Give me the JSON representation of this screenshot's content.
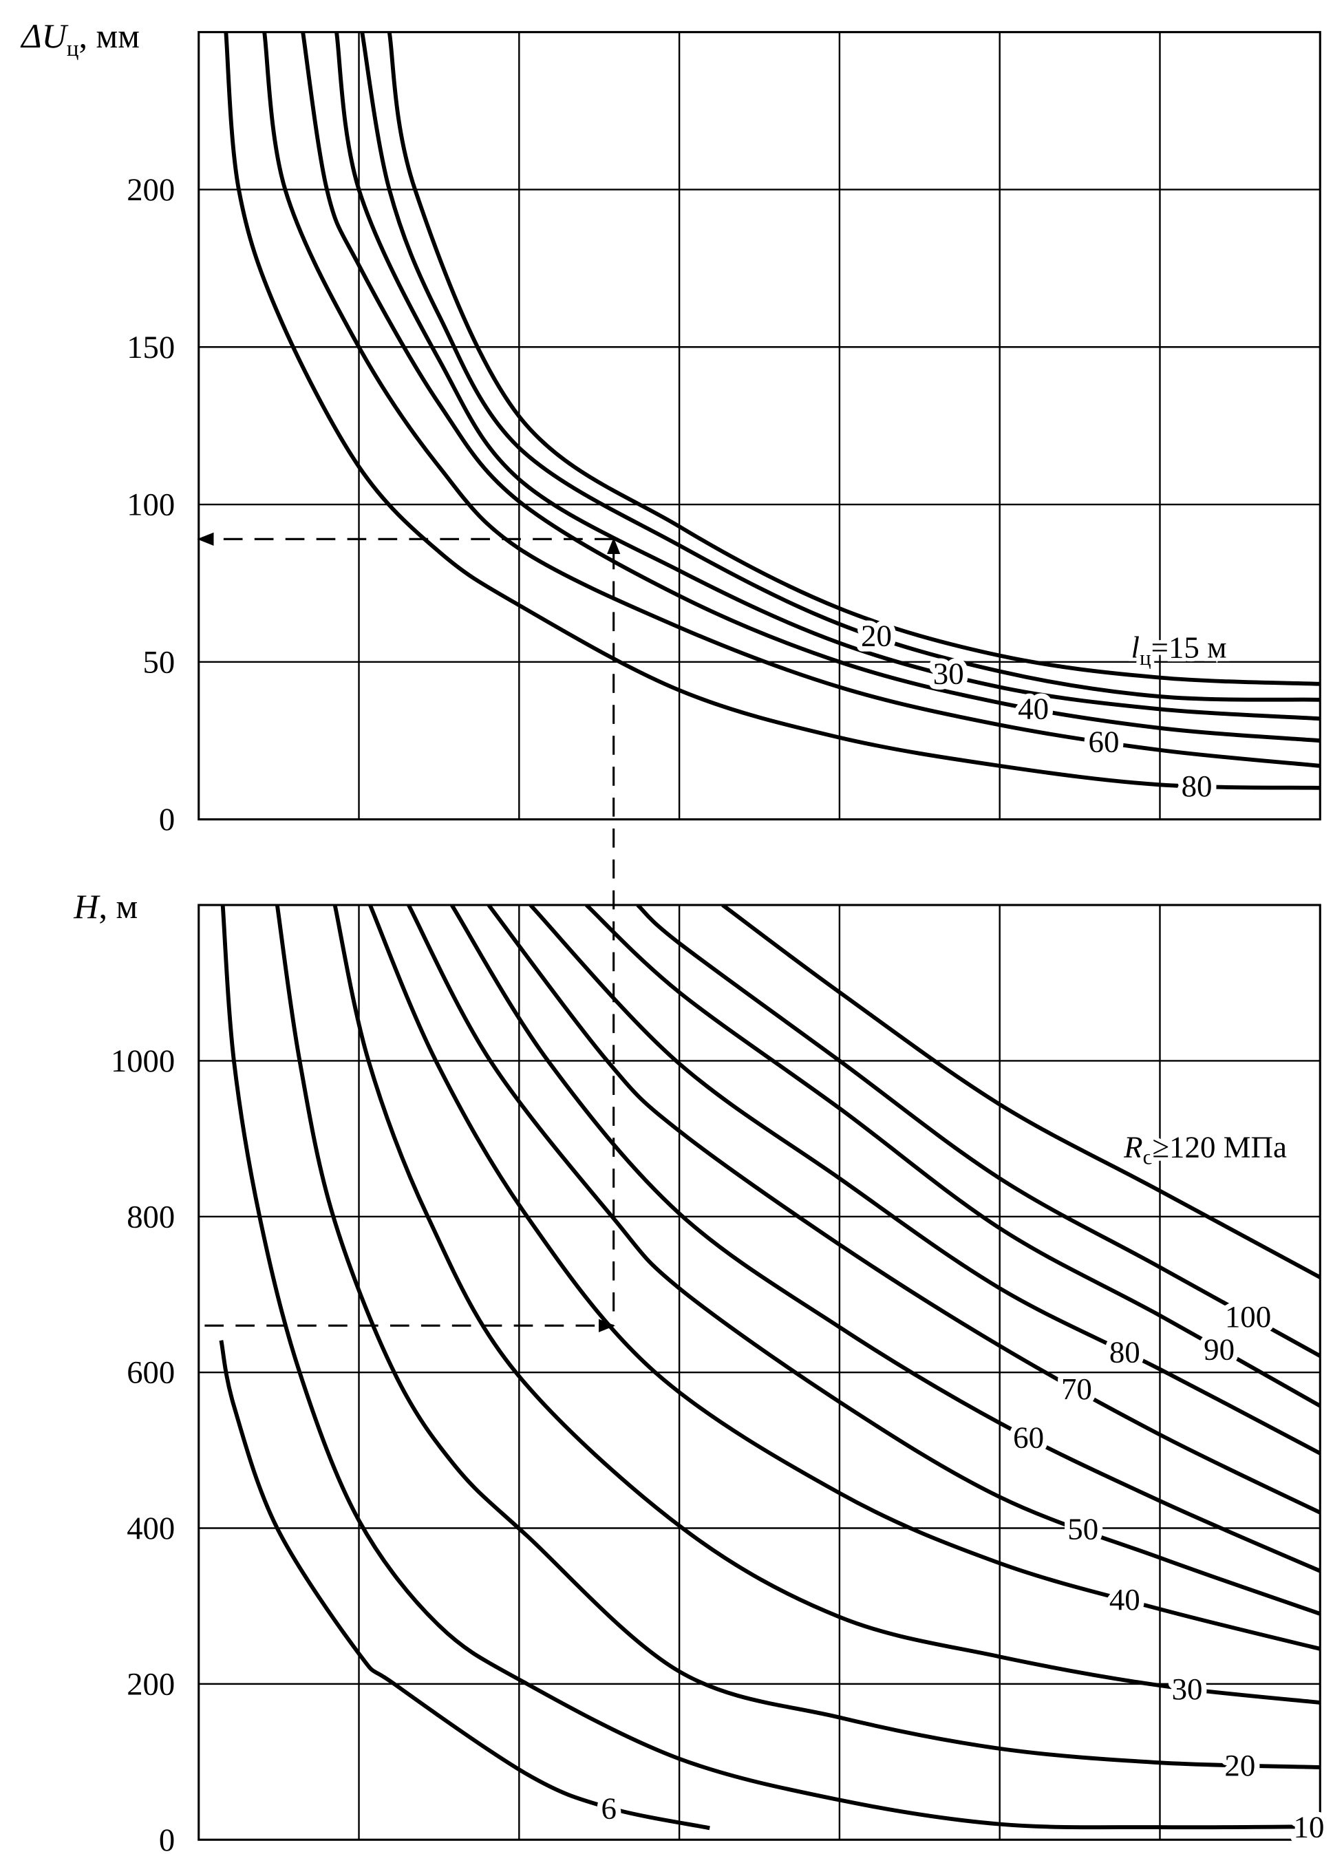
{
  "chart_data": [
    {
      "type": "line",
      "title": "",
      "ylabel": {
        "symbol": "ΔU",
        "subscript": "ц",
        "unit": ", мм"
      },
      "xlabel": "",
      "x_ticks_labeled": false,
      "xlim": [
        0,
        7
      ],
      "ylim": [
        0,
        250
      ],
      "yticks": [
        "0",
        "50",
        "100",
        "150",
        "200"
      ],
      "ytick_values": [
        0,
        50,
        100,
        150,
        200
      ],
      "grid": true,
      "series": [
        {
          "name": "15",
          "label": {
            "symbol": "l",
            "subscript": "ц",
            "text": "=15 м"
          },
          "points": [
            [
              1.19,
              250
            ],
            [
              1.35,
              200
            ],
            [
              2,
              128
            ],
            [
              3,
              93
            ],
            [
              4,
              67
            ],
            [
              5,
              52
            ],
            [
              6,
              45
            ],
            [
              7,
              43
            ]
          ]
        },
        {
          "name": "20",
          "label_text": "20",
          "points": [
            [
              1.02,
              250
            ],
            [
              1.19,
              200
            ],
            [
              1.5,
              160
            ],
            [
              2,
              118
            ],
            [
              3,
              87
            ],
            [
              4,
              62
            ],
            [
              5,
              47
            ],
            [
              6,
              39
            ],
            [
              7,
              38
            ]
          ]
        },
        {
          "name": "30",
          "label_text": "30",
          "points": [
            [
              0.86,
              250
            ],
            [
              1.0,
              200
            ],
            [
              1.5,
              146
            ],
            [
              2,
              108
            ],
            [
              3,
              79
            ],
            [
              4,
              56
            ],
            [
              5,
              42
            ],
            [
              6,
              35
            ],
            [
              7,
              32
            ]
          ]
        },
        {
          "name": "40",
          "label_text": "40",
          "points": [
            [
              0.65,
              250
            ],
            [
              0.8,
              200
            ],
            [
              1,
              176
            ],
            [
              1.5,
              132
            ],
            [
              2,
              101
            ],
            [
              3,
              71
            ],
            [
              4,
              50
            ],
            [
              5,
              37
            ],
            [
              6,
              29
            ],
            [
              7,
              25
            ]
          ]
        },
        {
          "name": "60",
          "label_text": "60",
          "points": [
            [
              0.41,
              250
            ],
            [
              0.54,
              200
            ],
            [
              1,
              150
            ],
            [
              1.5,
              112
            ],
            [
              2,
              86
            ],
            [
              3,
              61
            ],
            [
              4,
              42
            ],
            [
              5,
              30
            ],
            [
              6,
              22
            ],
            [
              7,
              17
            ]
          ]
        },
        {
          "name": "80",
          "label_text": "80",
          "points": [
            [
              0.17,
              250
            ],
            [
              0.25,
              200
            ],
            [
              0.5,
              160
            ],
            [
              1,
              112
            ],
            [
              1.5,
              85
            ],
            [
              2,
              68
            ],
            [
              3,
              41
            ],
            [
              4,
              26
            ],
            [
              5,
              17
            ],
            [
              6,
              11
            ],
            [
              7,
              10
            ]
          ]
        }
      ],
      "reading": {
        "x": 2.59,
        "value": 89
      }
    },
    {
      "type": "line",
      "title": "",
      "ylabel": {
        "symbol": "H",
        "unit": ", м"
      },
      "xlabel": "",
      "x_ticks_labeled": false,
      "xlim": [
        0,
        7
      ],
      "ylim": [
        0,
        1200
      ],
      "yticks": [
        "0",
        "200",
        "400",
        "600",
        "800",
        "1000"
      ],
      "ytick_values": [
        0,
        200,
        400,
        600,
        800,
        1000
      ],
      "grid": true,
      "series": [
        {
          "name": "6",
          "label_text": "6",
          "points": [
            [
              0.14,
              641
            ],
            [
              0.22,
              557
            ],
            [
              0.49,
              400
            ],
            [
              1.0,
              239
            ],
            [
              1.22,
              200
            ],
            [
              2.05,
              84
            ],
            [
              2.56,
              41
            ],
            [
              3.19,
              15
            ]
          ]
        },
        {
          "name": "10",
          "label_text": "10",
          "points": [
            [
              0.15,
              1200
            ],
            [
              0.22,
              1000
            ],
            [
              0.38,
              800
            ],
            [
              0.63,
              600
            ],
            [
              1.0,
              410
            ],
            [
              1.5,
              275
            ],
            [
              2.05,
              200
            ],
            [
              3,
              104
            ],
            [
              4,
              51
            ],
            [
              5,
              20
            ],
            [
              6,
              16
            ],
            [
              7,
              17
            ]
          ]
        },
        {
          "name": "20",
          "label_text": "20",
          "points": [
            [
              0.49,
              1200
            ],
            [
              0.63,
              1000
            ],
            [
              0.84,
              800
            ],
            [
              1.22,
              600
            ],
            [
              1.6,
              480
            ],
            [
              2.05,
              390
            ],
            [
              3,
              216
            ],
            [
              4,
              157
            ],
            [
              5,
              117
            ],
            [
              6,
              99
            ],
            [
              7,
              93
            ]
          ]
        },
        {
          "name": "30",
          "label_text": "30",
          "points": [
            [
              0.85,
              1200
            ],
            [
              1.06,
              1000
            ],
            [
              1.43,
              800
            ],
            [
              1.98,
              600
            ],
            [
              3.02,
              400
            ],
            [
              4,
              286
            ],
            [
              5,
              235
            ],
            [
              6,
              198
            ],
            [
              7,
              176
            ]
          ]
        },
        {
          "name": "40",
          "label_text": "40",
          "points": [
            [
              1.07,
              1200
            ],
            [
              1.48,
              1000
            ],
            [
              2.05,
              800
            ],
            [
              2.85,
              600
            ],
            [
              4,
              445
            ],
            [
              5,
              355
            ],
            [
              6,
              296
            ],
            [
              7,
              245
            ]
          ]
        },
        {
          "name": "50",
          "label_text": "50",
          "points": [
            [
              1.31,
              1200
            ],
            [
              1.82,
              1000
            ],
            [
              2.58,
              800
            ],
            [
              3,
              708
            ],
            [
              4,
              562
            ],
            [
              5,
              440
            ],
            [
              6,
              362
            ],
            [
              7,
              290
            ]
          ]
        },
        {
          "name": "60",
          "label_text": "60",
          "points": [
            [
              1.58,
              1200
            ],
            [
              2.18,
              1000
            ],
            [
              3,
              804
            ],
            [
              4,
              658
            ],
            [
              5,
              535
            ],
            [
              6,
              435
            ],
            [
              7,
              345
            ]
          ]
        },
        {
          "name": "70",
          "label_text": "70",
          "points": [
            [
              1.81,
              1200
            ],
            [
              2.55,
              1000
            ],
            [
              3,
              910
            ],
            [
              4,
              764
            ],
            [
              5,
              634
            ],
            [
              6,
              520
            ],
            [
              7,
              420
            ]
          ]
        },
        {
          "name": "80",
          "label_text": "80",
          "points": [
            [
              2.07,
              1200
            ],
            [
              2.98,
              1000
            ],
            [
              4,
              849
            ],
            [
              5,
              708
            ],
            [
              6,
              604
            ],
            [
              7,
              496
            ]
          ]
        },
        {
          "name": "90",
          "label_text": "90",
          "points": [
            [
              2.42,
              1200
            ],
            [
              3,
              1088
            ],
            [
              4,
              939
            ],
            [
              5,
              785
            ],
            [
              6,
              673
            ],
            [
              7,
              557
            ]
          ]
        },
        {
          "name": "100",
          "label_text": "100",
          "points": [
            [
              2.74,
              1200
            ],
            [
              3,
              1151
            ],
            [
              4,
              1000
            ],
            [
              5,
              849
            ],
            [
              6,
              735
            ],
            [
              7,
              621
            ]
          ]
        },
        {
          "name": "120",
          "label": {
            "symbol": "R",
            "subscript": "с",
            "text": "≥120 МПа"
          },
          "points": [
            [
              3.27,
              1200
            ],
            [
              4,
              1088
            ],
            [
              5,
              944
            ],
            [
              6,
              833
            ],
            [
              7,
              722
            ]
          ]
        }
      ],
      "reading": {
        "x": 2.59,
        "value": 660
      }
    }
  ]
}
